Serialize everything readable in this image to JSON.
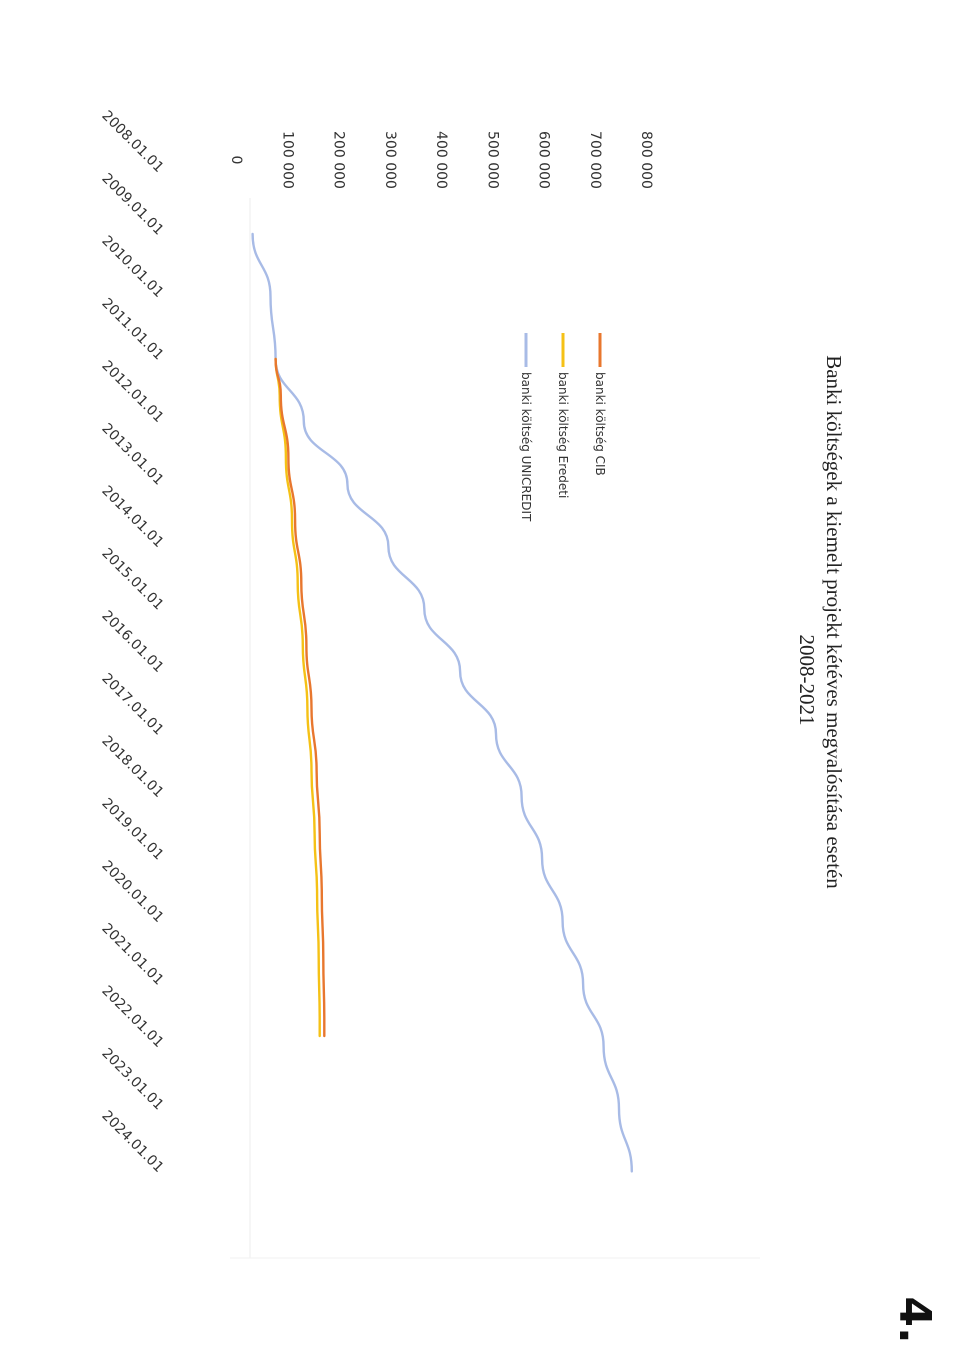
{
  "page_number": "4.",
  "chart_data": {
    "type": "line",
    "orientation": "rotated-90-clockwise",
    "title": "Banki költségek a kiemelt projekt kétéves megvalósítása esetén",
    "subtitle": "2008-2021",
    "xlabel": "",
    "ylabel": "",
    "ylim": [
      0,
      800000
    ],
    "y_ticks": [
      "0",
      "100 000",
      "200 000",
      "300 000",
      "400 000",
      "500 000",
      "600 000",
      "700 000",
      "800 000"
    ],
    "x_ticks": [
      "2008.01.01",
      "2009.01.01",
      "2010.01.01",
      "2011.01.01",
      "2012.01.01",
      "2013.01.01",
      "2014.01.01",
      "2015.01.01",
      "2016.01.01",
      "2017.01.01",
      "2018.01.01",
      "2019.01.01",
      "2020.01.01",
      "2021.01.01",
      "2022.01.01",
      "2023.01.01",
      "2024.01.01"
    ],
    "grid": false,
    "legend_position": "top-left",
    "series": [
      {
        "name": "banki költség CIB",
        "color": "#e8772e",
        "x": [
          "2010.06.01",
          "2011.01.01",
          "2012.01.01",
          "2013.01.01",
          "2014.01.01",
          "2015.01.01",
          "2016.01.01",
          "2017.01.01",
          "2018.01.01",
          "2019.01.01",
          "2020.01.01",
          "2021.01.01",
          "2021.04.01"
        ],
        "values": [
          50000,
          60000,
          75000,
          88000,
          100000,
          110000,
          120000,
          130000,
          136000,
          140000,
          143000,
          145000,
          145000
        ]
      },
      {
        "name": "banki költség Eredeti",
        "color": "#f5c116",
        "x": [
          "2010.06.01",
          "2011.01.01",
          "2012.01.01",
          "2013.01.01",
          "2014.01.01",
          "2015.01.01",
          "2016.01.01",
          "2017.01.01",
          "2018.01.01",
          "2019.01.01",
          "2020.01.01",
          "2021.01.01",
          "2021.04.01"
        ],
        "values": [
          50000,
          58000,
          70000,
          82000,
          93000,
          103000,
          112000,
          120000,
          126000,
          131000,
          134000,
          136000,
          136000
        ]
      },
      {
        "name": "banki költség UNICREDIT",
        "color": "#a8bbe6",
        "x": [
          "2008.06.01",
          "2009.06.01",
          "2010.06.01",
          "2011.06.01",
          "2012.06.01",
          "2013.06.01",
          "2014.06.01",
          "2015.06.01",
          "2016.06.01",
          "2017.06.01",
          "2018.06.01",
          "2019.06.01",
          "2020.06.01",
          "2021.06.01",
          "2022.06.01",
          "2023.06.01"
        ],
        "values": [
          5000,
          40000,
          50000,
          105000,
          190000,
          270000,
          340000,
          410000,
          480000,
          530000,
          570000,
          610000,
          650000,
          690000,
          720000,
          745000
        ]
      }
    ]
  }
}
